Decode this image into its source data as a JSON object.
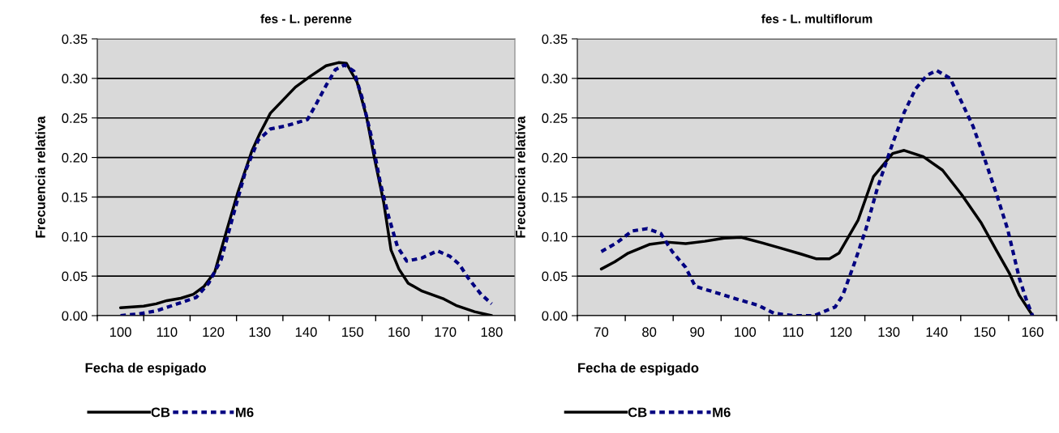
{
  "chart_data": [
    {
      "type": "line",
      "title": "fes - L. perenne",
      "xlabel": "Fecha de espigado",
      "ylabel": "Frecuencia relativa",
      "xlim": [
        95,
        185
      ],
      "xticks": [
        100,
        110,
        120,
        130,
        140,
        150,
        160,
        170,
        180
      ],
      "ylim": [
        0,
        0.35
      ],
      "yticks": [
        {
          "value": 0,
          "label": "0.00"
        },
        {
          "value": 0.05,
          "label": "0.05"
        },
        {
          "value": 0.1,
          "label": "0.10"
        },
        {
          "value": 0.15,
          "label": "0.15"
        },
        {
          "value": 0.2,
          "label": "0.20"
        },
        {
          "value": 0.25,
          "label": "0.25"
        },
        {
          "value": 0.3,
          "label": "0.30"
        },
        {
          "value": 0.35,
          "label": "0.35"
        }
      ],
      "grid": "y",
      "legend": "bottom",
      "series": [
        {
          "name": "CB",
          "color": "#000000",
          "line_style": "solid",
          "x": [
            100,
            105,
            107.7,
            110,
            113,
            115.7,
            118,
            120.3,
            123,
            125.3,
            128.3,
            130,
            132.3,
            137.7,
            141,
            144.3,
            147,
            148.7,
            151,
            153,
            154.7,
            156.7,
            158.3,
            160,
            162,
            165,
            169.7,
            172.3,
            176.3,
            180
          ],
          "values": [
            0.01,
            0.012,
            0.015,
            0.019,
            0.022,
            0.027,
            0.037,
            0.055,
            0.11,
            0.156,
            0.208,
            0.23,
            0.256,
            0.289,
            0.303,
            0.316,
            0.32,
            0.319,
            0.295,
            0.252,
            0.2,
            0.144,
            0.083,
            0.059,
            0.041,
            0.031,
            0.021,
            0.013,
            0.005,
            0.0
          ]
        },
        {
          "name": "M6",
          "color": "#000080",
          "line_style": "dashed",
          "x": [
            100,
            103.7,
            107.7,
            112.3,
            116.3,
            119,
            121.7,
            124.3,
            127,
            129.7,
            132.3,
            135.7,
            140.3,
            142.3,
            144.3,
            146.3,
            148.3,
            150.3,
            152,
            154,
            156,
            157.7,
            159.7,
            161.7,
            165,
            168.3,
            171,
            173,
            175,
            177.7,
            180
          ],
          "values": [
            0.0,
            0.002,
            0.006,
            0.015,
            0.023,
            0.041,
            0.071,
            0.127,
            0.184,
            0.222,
            0.236,
            0.24,
            0.248,
            0.269,
            0.291,
            0.311,
            0.317,
            0.309,
            0.277,
            0.228,
            0.168,
            0.127,
            0.087,
            0.069,
            0.073,
            0.082,
            0.075,
            0.065,
            0.047,
            0.027,
            0.015
          ]
        }
      ]
    },
    {
      "type": "line",
      "title": "fes - L. multiflorum",
      "xlabel": "Fecha de espigado",
      "ylabel": "Frecuencia relativa",
      "xlim": [
        65,
        165
      ],
      "xticks": [
        70,
        80,
        90,
        100,
        110,
        120,
        130,
        140,
        150,
        160
      ],
      "ylim": [
        0,
        0.35
      ],
      "yticks": [
        {
          "value": 0,
          "label": "0.00"
        },
        {
          "value": 0.05,
          "label": "0.05"
        },
        {
          "value": 0.1,
          "label": "0.10"
        },
        {
          "value": 0.15,
          "label": "0.15"
        },
        {
          "value": 0.2,
          "label": "0.20"
        },
        {
          "value": 0.25,
          "label": "0.25"
        },
        {
          "value": 0.3,
          "label": "0.30"
        },
        {
          "value": 0.35,
          "label": "0.35"
        }
      ],
      "grid": "y",
      "legend": "bottom",
      "series": [
        {
          "name": "CB",
          "color": "#000000",
          "line_style": "solid",
          "x": [
            70,
            72.8,
            75.6,
            80,
            83.6,
            87.6,
            91.6,
            95.6,
            99.2,
            103.6,
            107.6,
            111.6,
            114.8,
            117.6,
            119.6,
            121.6,
            123.6,
            126.8,
            130.8,
            133.2,
            137.2,
            141.2,
            145.2,
            149.2,
            152.4,
            155.2,
            157.2,
            160
          ],
          "values": [
            0.059,
            0.068,
            0.079,
            0.09,
            0.093,
            0.091,
            0.094,
            0.098,
            0.099,
            0.092,
            0.085,
            0.078,
            0.072,
            0.072,
            0.079,
            0.1,
            0.121,
            0.176,
            0.205,
            0.209,
            0.201,
            0.184,
            0.153,
            0.118,
            0.083,
            0.053,
            0.026,
            0.0
          ]
        },
        {
          "name": "M6",
          "color": "#000080",
          "line_style": "dashed",
          "x": [
            70,
            73.2,
            76.4,
            79.6,
            82.4,
            84.8,
            87.6,
            89.6,
            94,
            98.8,
            102.8,
            106,
            110,
            114.4,
            118.8,
            120.4,
            122.8,
            125.2,
            127.6,
            130.8,
            133.2,
            135.6,
            138,
            140,
            142.8,
            145.2,
            147.6,
            150,
            152.4,
            154.8,
            157.2,
            158.8,
            160
          ],
          "values": [
            0.081,
            0.092,
            0.107,
            0.11,
            0.104,
            0.081,
            0.061,
            0.037,
            0.029,
            0.02,
            0.013,
            0.003,
            0.0,
            0.0,
            0.011,
            0.026,
            0.066,
            0.109,
            0.161,
            0.218,
            0.257,
            0.287,
            0.304,
            0.31,
            0.3,
            0.27,
            0.239,
            0.198,
            0.155,
            0.109,
            0.048,
            0.018,
            0.0
          ]
        }
      ]
    }
  ]
}
